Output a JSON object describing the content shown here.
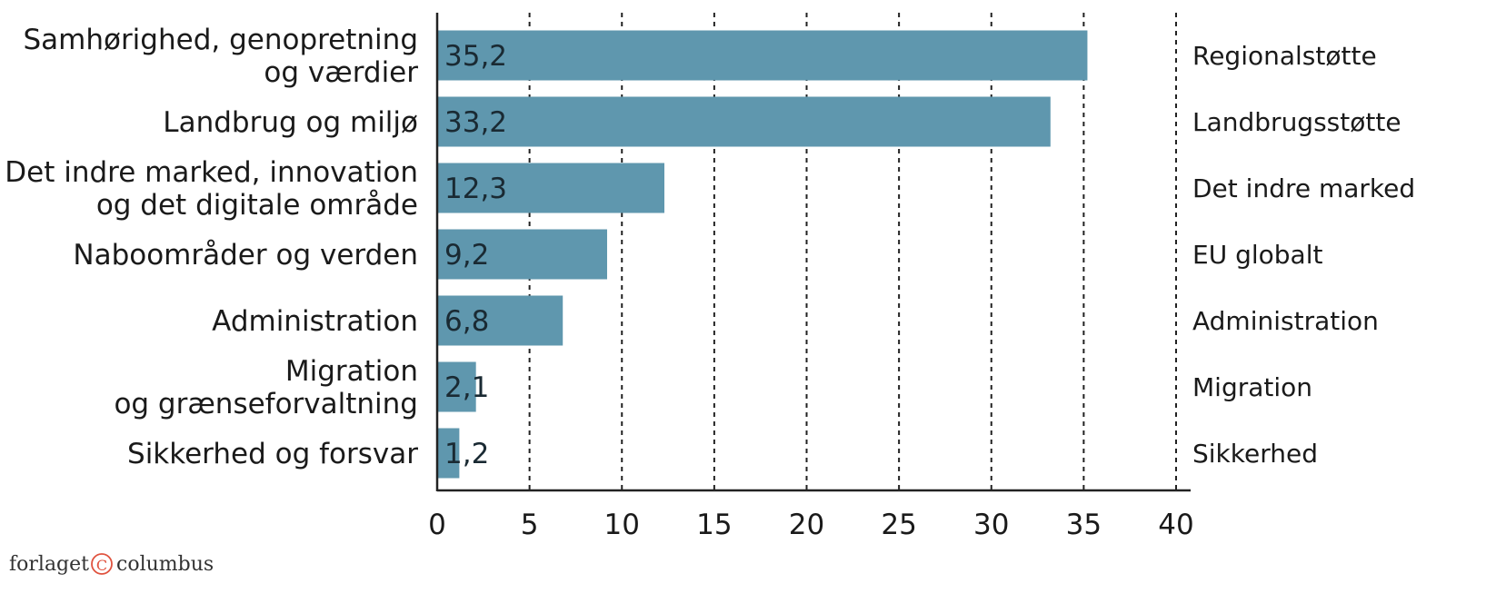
{
  "chart_data": {
    "type": "bar",
    "orientation": "horizontal",
    "categories": [
      [
        "Samhørighed, genopretning",
        "og værdier"
      ],
      [
        "Landbrug og miljø"
      ],
      [
        "Det indre marked, innovation",
        "og det digitale område"
      ],
      [
        "Naboområder og verden"
      ],
      [
        "Administration"
      ],
      [
        "Migration",
        "og grænseforvaltning"
      ],
      [
        "Sikkerhed og forsvar"
      ]
    ],
    "right_labels": [
      "Regionalstøtte",
      "Landbrugsstøtte",
      "Det indre marked",
      "EU globalt",
      "Administration",
      "Migration",
      "Sikkerhed"
    ],
    "values": [
      35.2,
      33.2,
      12.3,
      9.2,
      6.8,
      2.1,
      1.2
    ],
    "value_labels": [
      "35,2",
      "33,2",
      "12,3",
      "9,2",
      "6,8",
      "2,1",
      "1,2"
    ],
    "xlim": [
      0,
      40
    ],
    "xticks": [
      0,
      5,
      10,
      15,
      20,
      25,
      30,
      35,
      40
    ],
    "grid": "vertical dotted",
    "bar_color": "#5f97ae"
  },
  "logo": {
    "left": "forlaget",
    "right": "columbus",
    "symbol": "©",
    "symbol_color": "#e0533f"
  }
}
